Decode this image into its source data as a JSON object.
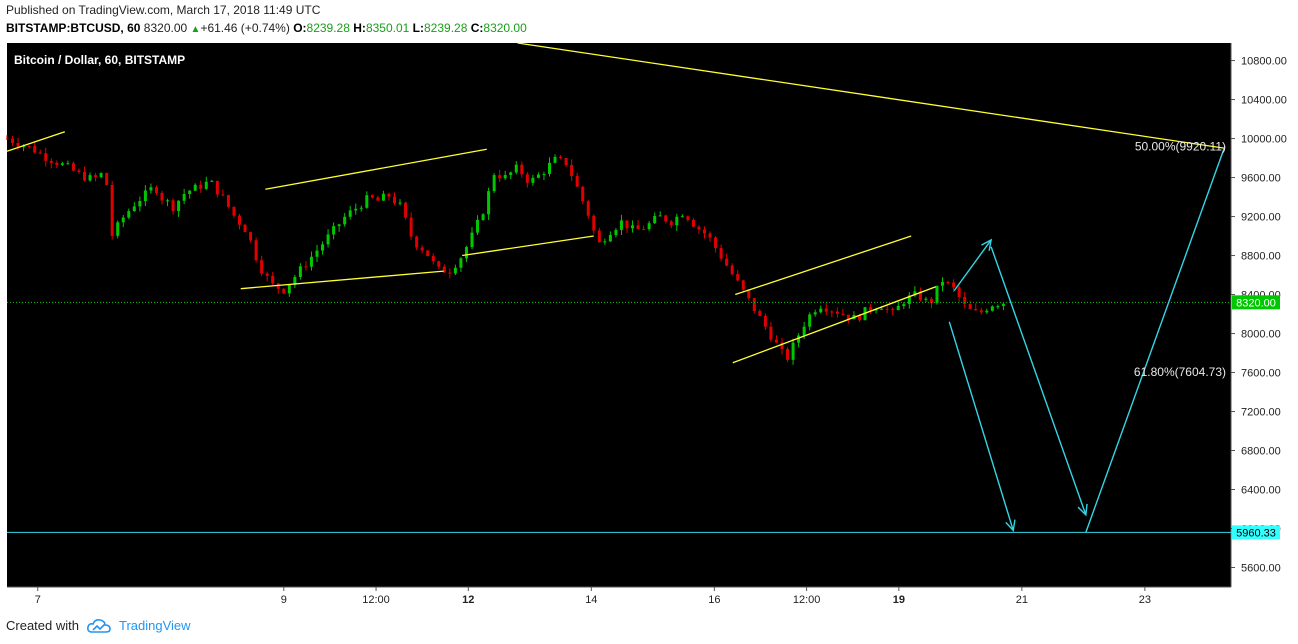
{
  "header": {
    "published": "Published on TradingView.com, March 17, 2018 11:49 UTC",
    "symbol": "BITSTAMP:BTCUSD, 60",
    "price": "8320.00",
    "change": "+61.46 (+0.74%)",
    "open_label": "O:",
    "open": "8239.28",
    "high_label": "H:",
    "high": "8350.01",
    "low_label": "L:",
    "low": "8239.28",
    "close_label": "C:",
    "close": "8320.00"
  },
  "legend": {
    "title": "Bitcoin / Dollar, 60, BITSTAMP"
  },
  "footer": {
    "created_with": "Created with",
    "brand": "TradingView"
  },
  "colors": {
    "up": "#00c800",
    "down": "#e00000",
    "trendline": "#ffff33",
    "arrow": "#33d6e6",
    "price_line": "#00c800",
    "bg": "#000000"
  },
  "chart_data": {
    "type": "candlestick",
    "y_ticks": [
      "10800.00",
      "10400.00",
      "10000.00",
      "9600.00",
      "9200.00",
      "8800.00",
      "8400.00",
      "8000.00",
      "7600.00",
      "7200.00",
      "6800.00",
      "6400.00",
      "6000.00",
      "5600.00"
    ],
    "ylim": [
      5400,
      10980
    ],
    "x_ticks": [
      {
        "label": "7",
        "day": 7.0,
        "bold": false
      },
      {
        "label": "9",
        "day": 9.0,
        "bold": false
      },
      {
        "label": "12:00",
        "day": 9.75,
        "bold": false
      },
      {
        "label": "12",
        "day": 10.5,
        "bold": true
      },
      {
        "label": "14",
        "day": 11.5,
        "bold": false
      },
      {
        "label": "16",
        "day": 12.5,
        "bold": false
      },
      {
        "label": "12:00",
        "day": 13.25,
        "bold": false
      },
      {
        "label": "19",
        "day": 14.0,
        "bold": true
      },
      {
        "label": "21",
        "day": 15.0,
        "bold": false
      },
      {
        "label": "23",
        "day": 16.0,
        "bold": false
      }
    ],
    "xlim": [
      6.75,
      16.7
    ],
    "current_price": {
      "label": "8320.00",
      "value": 8320
    },
    "target_level": {
      "label": "5960.33",
      "value": 5960.33
    },
    "fib_labels": [
      {
        "text": "50.00%(9920.11)",
        "value": 9920.11
      },
      {
        "text": "61.80%(7604.73)",
        "value": 7604.73
      }
    ],
    "price_path": [
      [
        6.75,
        10000
      ],
      [
        6.85,
        9950
      ],
      [
        6.95,
        9900
      ],
      [
        7.05,
        9820
      ],
      [
        7.15,
        9760
      ],
      [
        7.25,
        9700
      ],
      [
        7.35,
        9620
      ],
      [
        7.45,
        9580
      ],
      [
        7.55,
        9660
      ],
      [
        7.6,
        9000
      ],
      [
        7.7,
        9200
      ],
      [
        7.8,
        9350
      ],
      [
        7.9,
        9450
      ],
      [
        7.95,
        9520
      ],
      [
        8.0,
        9400
      ],
      [
        8.1,
        9300
      ],
      [
        8.2,
        9450
      ],
      [
        8.3,
        9500
      ],
      [
        8.4,
        9560
      ],
      [
        8.5,
        9400
      ],
      [
        8.6,
        9200
      ],
      [
        8.7,
        9050
      ],
      [
        8.8,
        8700
      ],
      [
        8.9,
        8500
      ],
      [
        9.0,
        8450
      ],
      [
        9.1,
        8600
      ],
      [
        9.2,
        8750
      ],
      [
        9.3,
        8900
      ],
      [
        9.4,
        9050
      ],
      [
        9.5,
        9200
      ],
      [
        9.6,
        9300
      ],
      [
        9.7,
        9400
      ],
      [
        9.75,
        9350
      ],
      [
        9.85,
        9420
      ],
      [
        9.95,
        9300
      ],
      [
        10.05,
        8950
      ],
      [
        10.15,
        8850
      ],
      [
        10.25,
        8650
      ],
      [
        10.35,
        8650
      ],
      [
        10.45,
        8800
      ],
      [
        10.55,
        9050
      ],
      [
        10.65,
        9350
      ],
      [
        10.7,
        9650
      ],
      [
        10.8,
        9600
      ],
      [
        10.9,
        9700
      ],
      [
        11.0,
        9550
      ],
      [
        11.1,
        9650
      ],
      [
        11.2,
        9780
      ],
      [
        11.3,
        9750
      ],
      [
        11.4,
        9450
      ],
      [
        11.5,
        9150
      ],
      [
        11.55,
        8900
      ],
      [
        11.65,
        9050
      ],
      [
        11.75,
        9150
      ],
      [
        11.85,
        9050
      ],
      [
        11.95,
        9100
      ],
      [
        12.05,
        9200
      ],
      [
        12.15,
        9150
      ],
      [
        12.25,
        9250
      ],
      [
        12.35,
        9100
      ],
      [
        12.45,
        9000
      ],
      [
        12.55,
        8800
      ],
      [
        12.65,
        8600
      ],
      [
        12.75,
        8400
      ],
      [
        12.85,
        8200
      ],
      [
        12.95,
        8000
      ],
      [
        13.05,
        7800
      ],
      [
        13.1,
        7750
      ],
      [
        13.15,
        7900
      ],
      [
        13.25,
        8150
      ],
      [
        13.35,
        8300
      ],
      [
        13.45,
        8250
      ],
      [
        13.55,
        8200
      ],
      [
        13.65,
        8150
      ],
      [
        13.75,
        8250
      ],
      [
        13.85,
        8300
      ],
      [
        13.95,
        8200
      ],
      [
        14.05,
        8350
      ],
      [
        14.15,
        8400
      ],
      [
        14.25,
        8300
      ],
      [
        14.35,
        8550
      ],
      [
        14.45,
        8450
      ],
      [
        14.55,
        8250
      ],
      [
        14.65,
        8200
      ],
      [
        14.75,
        8300
      ],
      [
        14.85,
        8320
      ]
    ],
    "trendlines": [
      [
        [
          6.75,
          9870
        ],
        [
          7.22,
          10070
        ]
      ],
      [
        [
          8.65,
          8460
        ],
        [
          10.3,
          8640
        ]
      ],
      [
        [
          8.85,
          9480
        ],
        [
          10.65,
          9890
        ]
      ],
      [
        [
          10.45,
          8800
        ],
        [
          11.52,
          9000
        ]
      ],
      [
        [
          10.9,
          10980
        ],
        [
          16.65,
          9900
        ]
      ],
      [
        [
          12.65,
          7700
        ],
        [
          14.3,
          8480
        ]
      ],
      [
        [
          12.67,
          8400
        ],
        [
          14.1,
          9000
        ]
      ]
    ],
    "arrows": [
      [
        [
          14.45,
          8440
        ],
        [
          14.75,
          8960
        ]
      ],
      [
        [
          14.41,
          8120
        ],
        [
          14.93,
          5980
        ]
      ],
      [
        [
          14.75,
          8890
        ],
        [
          15.52,
          6140
        ]
      ],
      [
        [
          15.52,
          5960
        ],
        [
          16.65,
          9920
        ]
      ]
    ]
  }
}
